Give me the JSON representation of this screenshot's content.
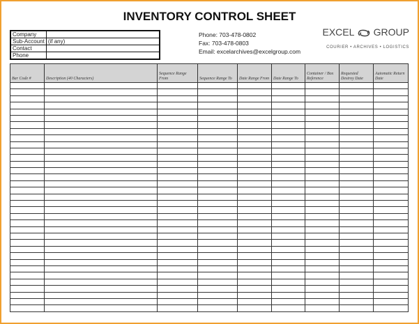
{
  "title": "INVENTORY CONTROL SHEET",
  "info_fields": [
    {
      "label": "Company",
      "value": ""
    },
    {
      "label": "Sub-Account",
      "value": "(if any)"
    },
    {
      "label": "Contact",
      "value": ""
    },
    {
      "label": "Phone",
      "value": ""
    }
  ],
  "contact": {
    "phone": "Phone:  703-478-0802",
    "fax": "Fax:  703-478-0803",
    "email": "Email: excelarchives@excelgroup.com"
  },
  "logo": {
    "left": "EXCEL",
    "right": "GROUP",
    "tagline": "COURIER • ARCHIVES • LOGISTICS"
  },
  "columns": [
    "Bar Code #",
    "Description (40 Characters)",
    "Sequence Range From",
    "Sequence Range To",
    "Date Range From",
    "Date Range To",
    "Container / Box Reference",
    "Requested Destroy Date",
    "Automatic Return Date"
  ],
  "row_count": 35,
  "colors": {
    "frame": "#f0a030",
    "header_bg": "#d4d4d4"
  }
}
